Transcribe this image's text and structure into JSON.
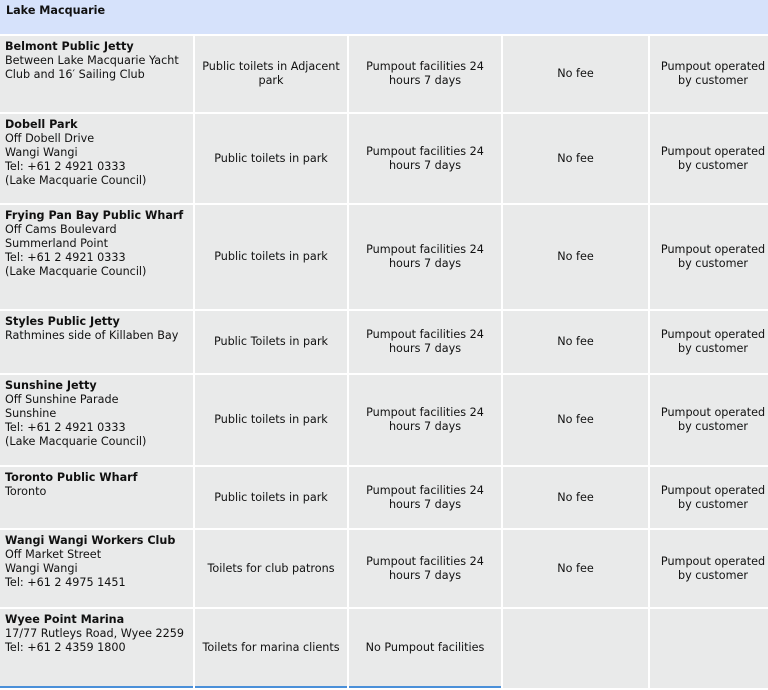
{
  "region": "Lake Macquarie",
  "rows": [
    {
      "name": "Belmont Public Jetty",
      "details": [
        "Between Lake Macquarie Yacht Club and 16′ Sailing Club"
      ],
      "toilets": "Public toilets in Adjacent park",
      "pumpout": "Pumpout facilities 24 hours 7 days",
      "fee": "No fee",
      "operation": "Pumpout operated by customer"
    },
    {
      "name": "Dobell Park",
      "details": [
        "Off Dobell Drive",
        "Wangi Wangi",
        "Tel: +61 2 4921 0333",
        "(Lake Macquarie Council)"
      ],
      "toilets": "Public toilets in park",
      "pumpout": "Pumpout facilities 24 hours 7 days",
      "fee": "No fee",
      "operation": "Pumpout operated by customer"
    },
    {
      "name": "Frying Pan Bay Public Wharf",
      "details": [
        "Off Cams Boulevard",
        "Summerland Point",
        "Tel: +61 2 4921 0333",
        "(Lake Macquarie Council)"
      ],
      "toilets": "Public toilets in park",
      "pumpout": "Pumpout facilities 24 hours 7 days",
      "fee": "No fee",
      "operation": "Pumpout operated by customer"
    },
    {
      "name": "Styles Public Jetty",
      "details": [
        "Rathmines side of Killaben Bay"
      ],
      "toilets": "Public Toilets in park",
      "pumpout": "Pumpout facilities 24 hours 7 days",
      "fee": "No fee",
      "operation": "Pumpout operated by customer"
    },
    {
      "name": "Sunshine Jetty",
      "details": [
        "Off Sunshine Parade",
        "Sunshine",
        "Tel: +61 2 4921 0333",
        "(Lake Macquarie Council)"
      ],
      "toilets": "Public toilets in park",
      "pumpout": "Pumpout facilities 24 hours 7 days",
      "fee": "No fee",
      "operation": "Pumpout operated by customer"
    },
    {
      "name": "Toronto Public Wharf",
      "details": [
        "Toronto"
      ],
      "toilets": "Public toilets in park",
      "pumpout": "Pumpout facilities 24 hours 7 days",
      "fee": "No fee",
      "operation": "Pumpout operated by customer"
    },
    {
      "name": "Wangi Wangi Workers Club",
      "details": [
        "Off Market Street",
        "Wangi Wangi",
        "Tel: +61 2 4975 1451"
      ],
      "toilets": "Toilets for club patrons",
      "pumpout": "Pumpout facilities 24 hours 7 days",
      "fee": "No fee",
      "operation": "Pumpout operated by customer"
    },
    {
      "name": "Wyee Point Marina",
      "details": [
        "17/77 Rutleys Road, Wyee 2259",
        "Tel: +61 2 4359 1800"
      ],
      "toilets": "Toilets for marina clients",
      "pumpout": "No Pumpout facilities",
      "fee": "",
      "operation": ""
    }
  ]
}
